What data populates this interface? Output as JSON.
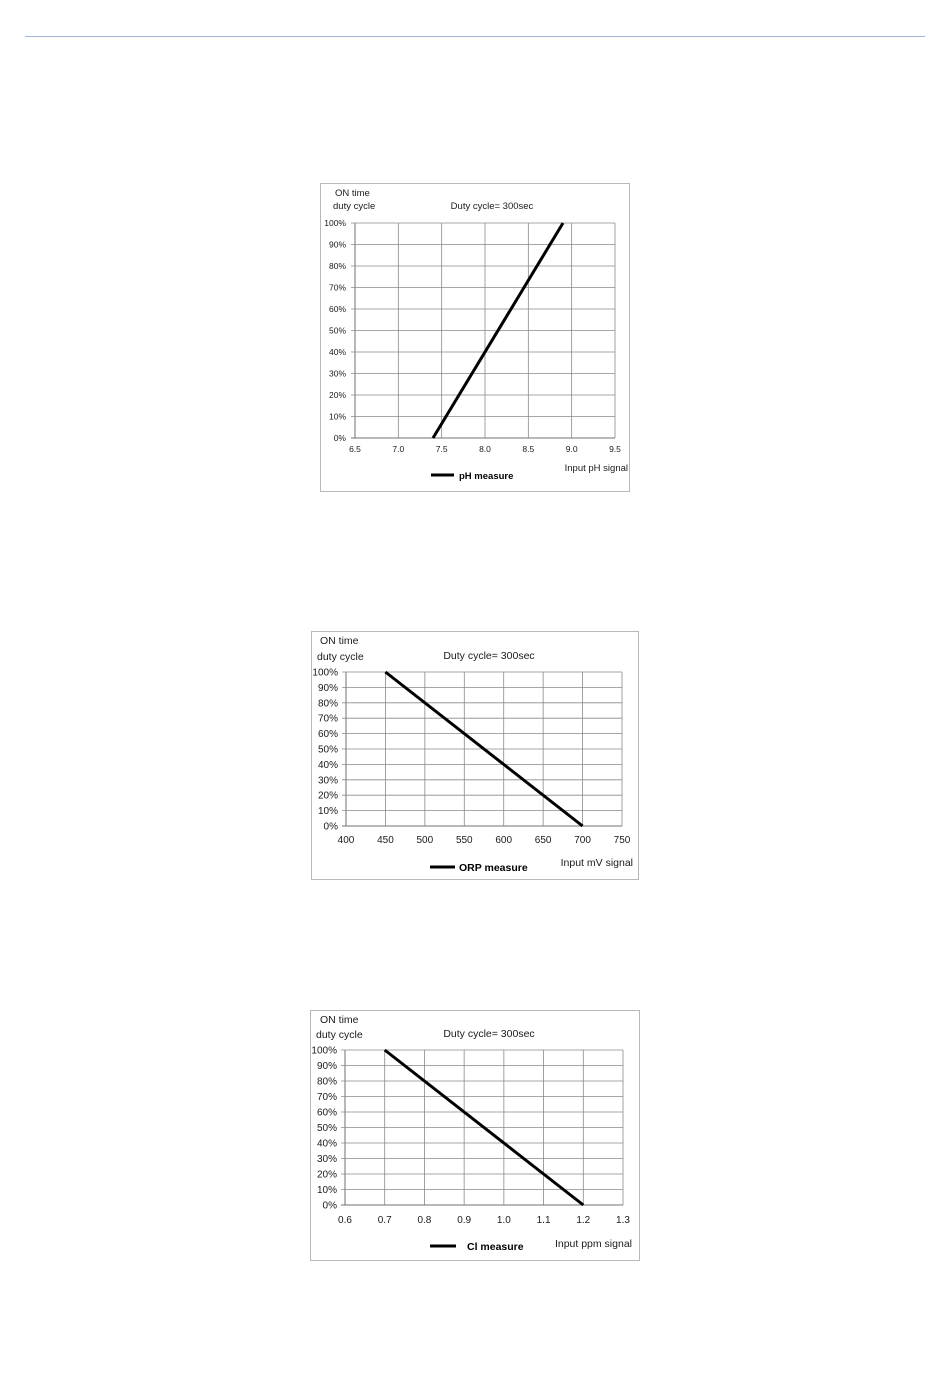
{
  "chart_data": [
    {
      "type": "line",
      "ylabel_line1": "ON time",
      "ylabel_line2": "duty cycle",
      "subtitle": "Duty cycle= 300sec",
      "xlabel": "Input pH signal",
      "x_ticks": [
        "6.5",
        "7.0",
        "7.5",
        "8.0",
        "8.5",
        "9.0",
        "9.5"
      ],
      "y_ticks": [
        "0%",
        "10%",
        "20%",
        "30%",
        "40%",
        "50%",
        "60%",
        "70%",
        "80%",
        "90%",
        "100%"
      ],
      "xlim": [
        6.5,
        9.5
      ],
      "ylim": [
        0,
        100
      ],
      "grid": true,
      "legend_position": "bottom-center",
      "series": [
        {
          "name": "pH measure",
          "x": [
            7.4,
            8.9
          ],
          "y": [
            0,
            100
          ]
        }
      ]
    },
    {
      "type": "line",
      "ylabel_line1": "ON time",
      "ylabel_line2": "duty cycle",
      "subtitle": "Duty cycle= 300sec",
      "xlabel": "Input mV signal",
      "x_ticks": [
        "400",
        "450",
        "500",
        "550",
        "600",
        "650",
        "700",
        "750"
      ],
      "y_ticks": [
        "0%",
        "10%",
        "20%",
        "30%",
        "40%",
        "50%",
        "60%",
        "70%",
        "80%",
        "90%",
        "100%"
      ],
      "xlim": [
        400,
        750
      ],
      "ylim": [
        0,
        100
      ],
      "grid": true,
      "legend_position": "bottom-center",
      "series": [
        {
          "name": "ORP measure",
          "x": [
            450,
            700
          ],
          "y": [
            100,
            0
          ]
        }
      ]
    },
    {
      "type": "line",
      "ylabel_line1": "ON time",
      "ylabel_line2": "duty cycle",
      "subtitle": "Duty cycle= 300sec",
      "xlabel": "Input ppm signal",
      "x_ticks": [
        "0.6",
        "0.7",
        "0.8",
        "0.9",
        "1.0",
        "1.1",
        "1.2",
        "1.3"
      ],
      "y_ticks": [
        "0%",
        "10%",
        "20%",
        "30%",
        "40%",
        "50%",
        "60%",
        "70%",
        "80%",
        "90%",
        "100%"
      ],
      "xlim": [
        0.6,
        1.3
      ],
      "ylim": [
        0,
        100
      ],
      "grid": true,
      "legend_position": "bottom-center",
      "series": [
        {
          "name": "Cl measure",
          "x": [
            0.7,
            1.2
          ],
          "y": [
            100,
            0
          ]
        }
      ]
    }
  ]
}
